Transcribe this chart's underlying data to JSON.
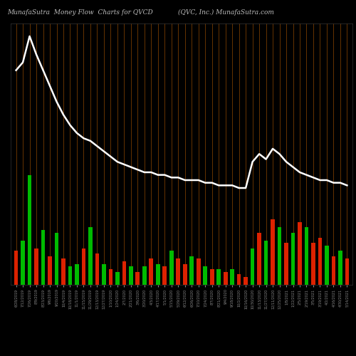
{
  "title_left": "MunafaSutra  Money Flow  Charts for QVCD",
  "title_right": "(QVC, Inc.) MunafaSutra.com",
  "background_color": "#000000",
  "n_bars": 50,
  "bar_width": 0.6,
  "line_color": "#ffffff",
  "line_width": 1.8,
  "vline_color": "#8B4500",
  "title_color": "#bbbbbb",
  "title_fontsize": 6.5,
  "bar_colors": [
    "#dd2200",
    "#00bb00",
    "#00bb00",
    "#dd2200",
    "#00bb00",
    "#dd2200",
    "#00bb00",
    "#dd2200",
    "#00bb00",
    "#00bb00",
    "#dd2200",
    "#00bb00",
    "#dd2200",
    "#00bb00",
    "#dd2200",
    "#00bb00",
    "#dd2200",
    "#00bb00",
    "#dd2200",
    "#00bb00",
    "#dd2200",
    "#00bb00",
    "#dd2200",
    "#00bb00",
    "#dd2200",
    "#dd2200",
    "#00bb00",
    "#dd2200",
    "#00bb00",
    "#dd2200",
    "#00bb00",
    "#dd2200",
    "#00bb00",
    "#dd2200",
    "#dd2200",
    "#00bb00",
    "#dd2200",
    "#00bb00",
    "#dd2200",
    "#00bb00",
    "#dd2200",
    "#00bb00",
    "#dd2200",
    "#00bb00",
    "#dd2200",
    "#dd2200",
    "#00bb00",
    "#dd2200",
    "#00bb00",
    "#dd2200"
  ],
  "bar_heights": [
    0.13,
    0.17,
    0.42,
    0.14,
    0.21,
    0.11,
    0.2,
    0.1,
    0.07,
    0.08,
    0.14,
    0.22,
    0.12,
    0.08,
    0.06,
    0.05,
    0.09,
    0.07,
    0.05,
    0.07,
    0.1,
    0.08,
    0.07,
    0.13,
    0.1,
    0.08,
    0.11,
    0.1,
    0.07,
    0.06,
    0.06,
    0.05,
    0.06,
    0.04,
    0.03,
    0.14,
    0.2,
    0.17,
    0.25,
    0.22,
    0.16,
    0.2,
    0.24,
    0.22,
    0.16,
    0.18,
    0.15,
    0.11,
    0.13,
    0.1
  ],
  "line_y": [
    0.82,
    0.85,
    0.95,
    0.88,
    0.82,
    0.76,
    0.7,
    0.65,
    0.61,
    0.58,
    0.56,
    0.55,
    0.53,
    0.51,
    0.49,
    0.47,
    0.46,
    0.45,
    0.44,
    0.43,
    0.43,
    0.42,
    0.42,
    0.41,
    0.41,
    0.4,
    0.4,
    0.4,
    0.39,
    0.39,
    0.38,
    0.38,
    0.38,
    0.37,
    0.37,
    0.47,
    0.5,
    0.48,
    0.52,
    0.5,
    0.47,
    0.45,
    0.43,
    0.42,
    0.41,
    0.4,
    0.4,
    0.39,
    0.39,
    0.38
  ],
  "ylim": [
    0,
    1.0
  ],
  "date_labels": [
    "6/28/2019",
    "7/12/2019",
    "7/26/2019",
    "8/9/2019",
    "8/23/2019",
    "9/6/2019",
    "9/20/2019",
    "10/4/2019",
    "10/18/2019",
    "11/1/2019",
    "11/15/2019",
    "11/29/2019",
    "12/13/2019",
    "12/27/2019",
    "1/10/2020",
    "1/24/2020",
    "2/7/2020",
    "2/21/2020",
    "3/6/2020",
    "3/20/2020",
    "4/3/2020",
    "4/17/2020",
    "5/1/2020",
    "5/15/2020",
    "5/29/2020",
    "6/12/2020",
    "6/26/2020",
    "7/10/2020",
    "7/24/2020",
    "8/7/2020",
    "8/21/2020",
    "9/4/2020",
    "9/18/2020",
    "10/2/2020",
    "10/16/2020",
    "10/30/2020",
    "11/13/2020",
    "11/27/2020",
    "12/11/2020",
    "12/25/2020",
    "1/8/2021",
    "1/22/2021",
    "2/5/2021",
    "2/19/2021",
    "3/5/2021",
    "3/19/2021",
    "4/2/2021",
    "4/16/2021",
    "4/30/2021",
    "5/14/2021"
  ]
}
